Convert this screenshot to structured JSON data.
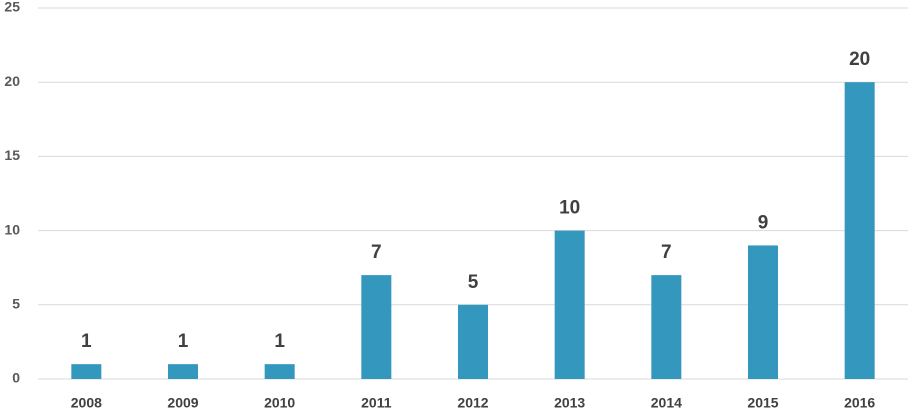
{
  "chart_data": {
    "type": "bar",
    "categories": [
      "2008",
      "2009",
      "2010",
      "2011",
      "2012",
      "2013",
      "2014",
      "2015",
      "2016"
    ],
    "values": [
      1,
      1,
      1,
      7,
      5,
      10,
      7,
      9,
      20
    ],
    "color": "#3497be",
    "ylim": [
      0,
      25
    ],
    "yticks": [
      0,
      5,
      10,
      15,
      20,
      25
    ],
    "grid": true
  }
}
